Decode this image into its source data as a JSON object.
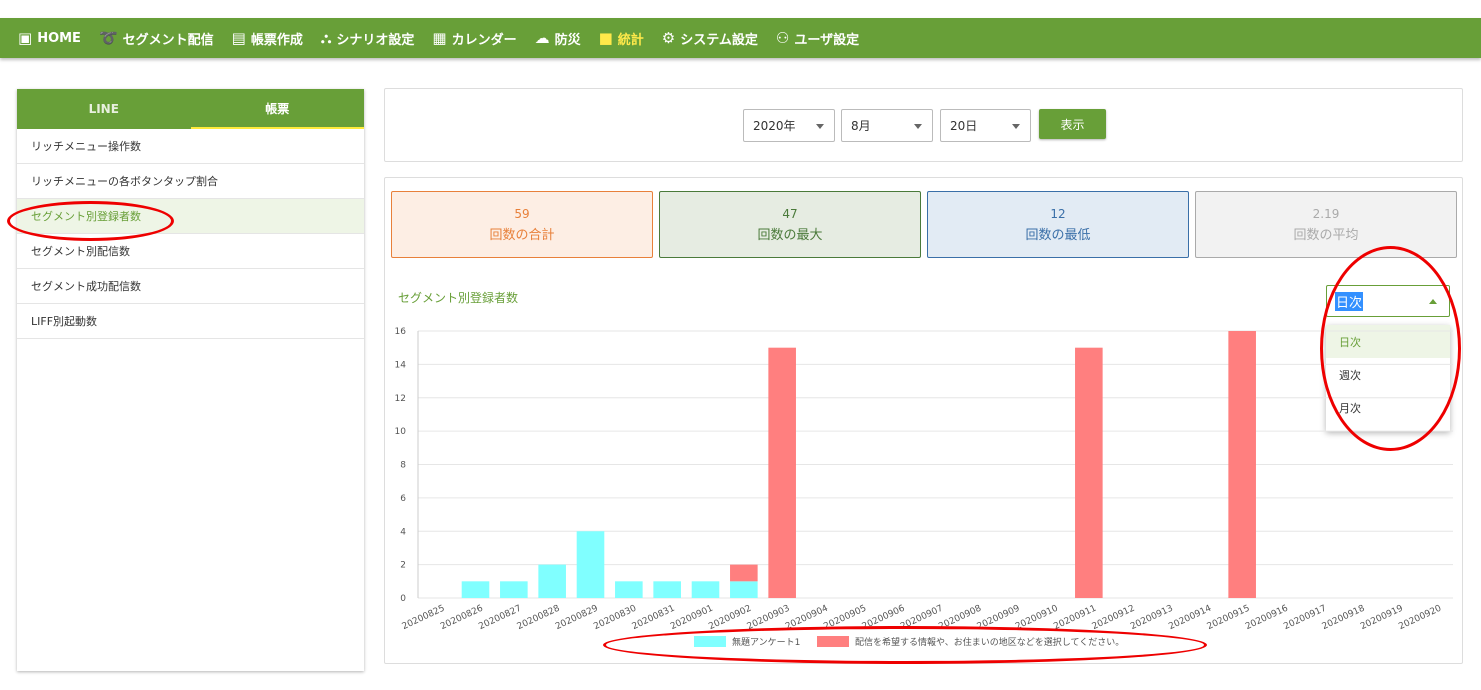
{
  "nav": {
    "items": [
      {
        "label": "HOME",
        "icon": "clipboard-icon"
      },
      {
        "label": "セグメント配信",
        "icon": "broadcast-icon"
      },
      {
        "label": "帳票作成",
        "icon": "document-icon"
      },
      {
        "label": "シナリオ設定",
        "icon": "scenario-icon"
      },
      {
        "label": "カレンダー",
        "icon": "calendar-icon"
      },
      {
        "label": "防災",
        "icon": "cloud-icon"
      },
      {
        "label": "統計",
        "icon": "cube-icon",
        "active": true
      },
      {
        "label": "システム設定",
        "icon": "gear-icon"
      },
      {
        "label": "ユーザ設定",
        "icon": "users-icon"
      }
    ]
  },
  "sidebar": {
    "tabs": [
      "LINE",
      "帳票"
    ],
    "items": [
      "リッチメニュー操作数",
      "リッチメニューの各ボタンタップ割合",
      "セグメント別登録者数",
      "セグメント別配信数",
      "セグメント成功配信数",
      "LIFF別起動数"
    ]
  },
  "filters": {
    "year": "2020年",
    "month": "8月",
    "day": "20日",
    "show_label": "表示"
  },
  "stats": [
    {
      "value": "59",
      "label": "回数の合計",
      "color": "#e8803a",
      "bg": "#fdeee4"
    },
    {
      "value": "47",
      "label": "回数の最大",
      "color": "#4a7a3a",
      "bg": "#e6ece2"
    },
    {
      "value": "12",
      "label": "回数の最低",
      "color": "#3a6fa8",
      "bg": "#e2ebf4"
    },
    {
      "value": "2.19",
      "label": "回数の平均",
      "color": "#aaaaaa",
      "bg": "#f2f2f2"
    }
  ],
  "chart_title": "セグメント別登録者数",
  "period": {
    "selected": "日次",
    "options": [
      "日次",
      "週次",
      "月次"
    ]
  },
  "colors": {
    "accent": "#689f38",
    "series1": "#80ffff",
    "series2": "#ff7f7f"
  },
  "chart_data": {
    "type": "bar",
    "stacked": true,
    "categories": [
      "20200825",
      "20200826",
      "20200827",
      "20200828",
      "20200829",
      "20200830",
      "20200831",
      "20200901",
      "20200902",
      "20200903",
      "20200904",
      "20200905",
      "20200906",
      "20200907",
      "20200908",
      "20200909",
      "20200910",
      "20200911",
      "20200912",
      "20200913",
      "20200914",
      "20200915",
      "20200916",
      "20200917",
      "20200918",
      "20200919",
      "20200920"
    ],
    "series": [
      {
        "name": "無題アンケート1",
        "values": [
          0,
          1,
          1,
          2,
          4,
          1,
          1,
          1,
          1,
          0,
          0,
          0,
          0,
          0,
          0,
          0,
          0,
          0,
          0,
          0,
          0,
          0,
          0,
          0,
          0,
          0,
          0
        ]
      },
      {
        "name": "配信を希望する情報や、お住まいの地区などを選択してください。",
        "values": [
          0,
          0,
          0,
          0,
          0,
          0,
          0,
          0,
          1,
          15,
          0,
          0,
          0,
          0,
          0,
          0,
          0,
          15,
          0,
          0,
          0,
          16,
          0,
          0,
          0,
          0,
          0
        ]
      }
    ],
    "yticks": [
      "0",
      "2",
      "4",
      "6",
      "8",
      "10",
      "12",
      "14",
      "16"
    ],
    "ylim": [
      0,
      16
    ],
    "grid": true,
    "legend_position": "bottom"
  }
}
